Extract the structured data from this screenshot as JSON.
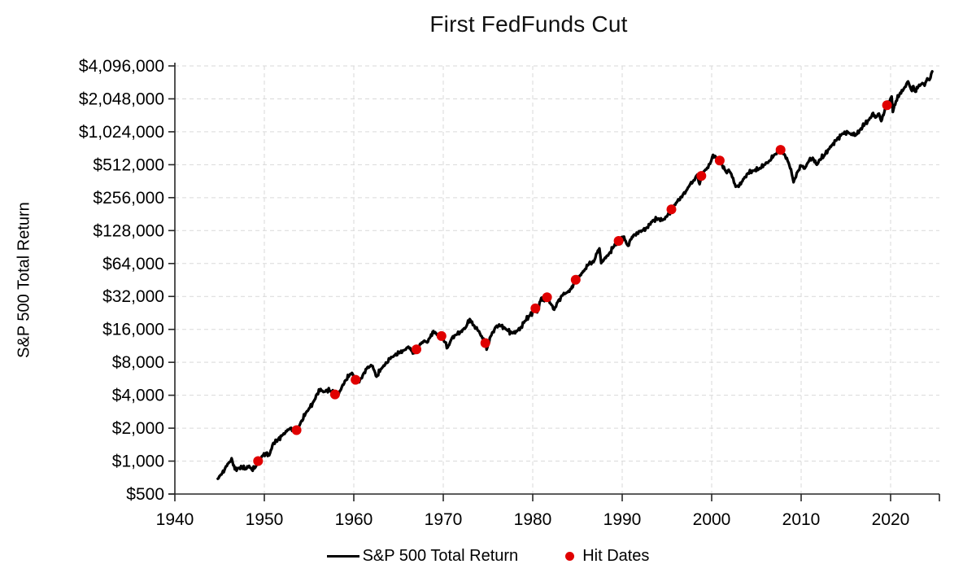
{
  "chart_data": {
    "type": "line",
    "title": "First FedFunds Cut",
    "xlabel": "",
    "ylabel": "S&P 500 Total Return",
    "y_scale": "log2",
    "grid": "dashed",
    "legend_position": "bottom",
    "x_ticks": [
      1940,
      1950,
      1960,
      1970,
      1980,
      1990,
      2000,
      2010,
      2020
    ],
    "x_range": [
      1940,
      2025.5
    ],
    "y_ticks": [
      {
        "label": "$4,096,000",
        "value": 4096000
      },
      {
        "label": "$2,048,000",
        "value": 2048000
      },
      {
        "label": "$1,024,000",
        "value": 1024000
      },
      {
        "label": "$512,000",
        "value": 512000
      },
      {
        "label": "$256,000",
        "value": 256000
      },
      {
        "label": "$128,000",
        "value": 128000
      },
      {
        "label": "$64,000",
        "value": 64000
      },
      {
        "label": "$32,000",
        "value": 32000
      },
      {
        "label": "$16,000",
        "value": 16000
      },
      {
        "label": "$8,000",
        "value": 8000
      },
      {
        "label": "$4,000",
        "value": 4000
      },
      {
        "label": "$2,000",
        "value": 2000
      },
      {
        "label": "$1,000",
        "value": 1000
      },
      {
        "label": "$500",
        "value": 500
      }
    ],
    "colors": {
      "line": "#000000",
      "hit": "#e00000",
      "grid": "#d9d9d9",
      "axis": "#262626",
      "text": "#000000"
    },
    "series": [
      {
        "name": "S&P 500 Total Return",
        "type": "line",
        "points": [
          [
            1944.8,
            690
          ],
          [
            1945.3,
            780
          ],
          [
            1945.8,
            900
          ],
          [
            1946.1,
            980
          ],
          [
            1946.35,
            1060
          ],
          [
            1946.7,
            840
          ],
          [
            1947.1,
            862
          ],
          [
            1947.5,
            885
          ],
          [
            1947.9,
            845
          ],
          [
            1948.3,
            905
          ],
          [
            1948.6,
            835
          ],
          [
            1949.0,
            875
          ],
          [
            1949.3,
            1000
          ],
          [
            1949.8,
            1120
          ],
          [
            1950.3,
            1195
          ],
          [
            1950.55,
            1130
          ],
          [
            1951.0,
            1460
          ],
          [
            1951.5,
            1560
          ],
          [
            1952.0,
            1725
          ],
          [
            1952.5,
            1870
          ],
          [
            1952.9,
            2000
          ],
          [
            1953.3,
            1885
          ],
          [
            1953.6,
            1920
          ],
          [
            1954.0,
            2180
          ],
          [
            1954.6,
            2720
          ],
          [
            1955.1,
            3090
          ],
          [
            1955.5,
            3500
          ],
          [
            1955.9,
            4120
          ],
          [
            1956.3,
            4560
          ],
          [
            1956.6,
            4280
          ],
          [
            1957.0,
            4470
          ],
          [
            1957.4,
            4360
          ],
          [
            1957.9,
            4070
          ],
          [
            1958.05,
            3860
          ],
          [
            1958.5,
            4420
          ],
          [
            1959.0,
            5400
          ],
          [
            1959.5,
            6050
          ],
          [
            1959.8,
            6400
          ],
          [
            1960.2,
            5540
          ],
          [
            1960.6,
            5260
          ],
          [
            1961.0,
            6100
          ],
          [
            1961.5,
            7150
          ],
          [
            1962.0,
            7440
          ],
          [
            1962.3,
            6700
          ],
          [
            1962.55,
            5920
          ],
          [
            1963.0,
            6900
          ],
          [
            1963.5,
            7620
          ],
          [
            1964.0,
            8600
          ],
          [
            1964.6,
            9300
          ],
          [
            1965.2,
            9900
          ],
          [
            1965.7,
            10400
          ],
          [
            1966.1,
            11100
          ],
          [
            1966.5,
            10200
          ],
          [
            1966.8,
            9720
          ],
          [
            1967.0,
            10500
          ],
          [
            1967.5,
            11800
          ],
          [
            1967.9,
            12600
          ],
          [
            1968.2,
            12150
          ],
          [
            1968.9,
            15400
          ],
          [
            1969.3,
            14250
          ],
          [
            1969.8,
            13900
          ],
          [
            1970.2,
            12200
          ],
          [
            1970.5,
            10950
          ],
          [
            1971.0,
            13500
          ],
          [
            1971.5,
            14300
          ],
          [
            1972.0,
            15400
          ],
          [
            1972.5,
            16600
          ],
          [
            1972.95,
            19900
          ],
          [
            1973.4,
            17500
          ],
          [
            1973.9,
            15500
          ],
          [
            1974.3,
            13800
          ],
          [
            1974.7,
            12000
          ],
          [
            1974.85,
            10450
          ],
          [
            1975.3,
            13800
          ],
          [
            1975.9,
            17000
          ],
          [
            1976.5,
            17400
          ],
          [
            1977.0,
            16000
          ],
          [
            1977.7,
            14800
          ],
          [
            1978.2,
            15300
          ],
          [
            1978.7,
            16800
          ],
          [
            1979.1,
            19000
          ],
          [
            1979.7,
            21500
          ],
          [
            1980.1,
            23800
          ],
          [
            1980.3,
            24900
          ],
          [
            1980.5,
            22900
          ],
          [
            1980.95,
            31000
          ],
          [
            1981.3,
            29000
          ],
          [
            1981.6,
            31500
          ],
          [
            1982.0,
            27500
          ],
          [
            1982.4,
            24200
          ],
          [
            1982.8,
            28500
          ],
          [
            1983.4,
            33400
          ],
          [
            1983.9,
            35000
          ],
          [
            1984.3,
            37500
          ],
          [
            1984.8,
            45500
          ],
          [
            1985.3,
            50000
          ],
          [
            1985.8,
            56000
          ],
          [
            1986.3,
            64000
          ],
          [
            1986.8,
            66000
          ],
          [
            1987.2,
            80000
          ],
          [
            1987.45,
            88000
          ],
          [
            1987.65,
            64500
          ],
          [
            1988.0,
            70500
          ],
          [
            1988.5,
            78000
          ],
          [
            1989.0,
            90000
          ],
          [
            1989.6,
            103000
          ],
          [
            1990.0,
            112000
          ],
          [
            1990.3,
            105000
          ],
          [
            1990.65,
            93000
          ],
          [
            1991.1,
            112000
          ],
          [
            1991.7,
            122000
          ],
          [
            1992.2,
            128000
          ],
          [
            1992.8,
            136000
          ],
          [
            1993.4,
            158000
          ],
          [
            1994.0,
            165000
          ],
          [
            1994.5,
            159000
          ],
          [
            1995.0,
            172000
          ],
          [
            1995.5,
            200000
          ],
          [
            1996.1,
            232000
          ],
          [
            1996.6,
            261000
          ],
          [
            1997.1,
            290000
          ],
          [
            1997.6,
            340000
          ],
          [
            1998.0,
            370000
          ],
          [
            1998.4,
            415000
          ],
          [
            1998.65,
            340000
          ],
          [
            1998.85,
            405000
          ],
          [
            1999.2,
            450000
          ],
          [
            1999.6,
            480000
          ],
          [
            1999.9,
            540000
          ],
          [
            2000.15,
            630000
          ],
          [
            2000.5,
            590000
          ],
          [
            2000.9,
            560000
          ],
          [
            2001.2,
            500000
          ],
          [
            2001.7,
            430000
          ],
          [
            2001.9,
            460000
          ],
          [
            2002.2,
            420000
          ],
          [
            2002.6,
            340000
          ],
          [
            2002.85,
            325000
          ],
          [
            2003.1,
            332000
          ],
          [
            2003.6,
            382000
          ],
          [
            2004.1,
            430000
          ],
          [
            2004.7,
            452000
          ],
          [
            2005.3,
            470000
          ],
          [
            2005.9,
            512000
          ],
          [
            2006.4,
            552000
          ],
          [
            2006.9,
            612000
          ],
          [
            2007.4,
            672000
          ],
          [
            2007.7,
            700000
          ],
          [
            2008.0,
            642000
          ],
          [
            2008.4,
            590000
          ],
          [
            2008.7,
            500000
          ],
          [
            2008.95,
            422000
          ],
          [
            2009.15,
            354000
          ],
          [
            2009.6,
            442000
          ],
          [
            2010.0,
            502000
          ],
          [
            2010.4,
            472000
          ],
          [
            2010.9,
            562000
          ],
          [
            2011.3,
            592000
          ],
          [
            2011.75,
            512000
          ],
          [
            2012.1,
            572000
          ],
          [
            2012.6,
            622000
          ],
          [
            2013.0,
            702000
          ],
          [
            2013.5,
            782000
          ],
          [
            2014.0,
            872000
          ],
          [
            2014.6,
            982000
          ],
          [
            2015.2,
            1022000
          ],
          [
            2015.6,
            962000
          ],
          [
            2015.9,
            1002000
          ],
          [
            2016.1,
            952000
          ],
          [
            2016.6,
            1072000
          ],
          [
            2017.1,
            1202000
          ],
          [
            2017.6,
            1322000
          ],
          [
            2018.05,
            1522000
          ],
          [
            2018.3,
            1382000
          ],
          [
            2018.7,
            1502000
          ],
          [
            2018.95,
            1282000
          ],
          [
            2019.3,
            1552000
          ],
          [
            2019.6,
            1790000
          ],
          [
            2019.9,
            1952000
          ],
          [
            2020.12,
            2152000
          ],
          [
            2020.25,
            1552000
          ],
          [
            2020.6,
            1952000
          ],
          [
            2021.0,
            2252000
          ],
          [
            2021.5,
            2552000
          ],
          [
            2021.95,
            2952000
          ],
          [
            2022.3,
            2480000
          ],
          [
            2022.55,
            2680000
          ],
          [
            2022.75,
            2380000
          ],
          [
            2023.1,
            2652000
          ],
          [
            2023.55,
            2852000
          ],
          [
            2023.8,
            2702000
          ],
          [
            2024.1,
            3152000
          ],
          [
            2024.35,
            3052000
          ],
          [
            2024.65,
            3650000
          ]
        ]
      },
      {
        "name": "Hit Dates",
        "type": "scatter",
        "points": [
          [
            1949.3,
            1000
          ],
          [
            1953.6,
            1920
          ],
          [
            1957.9,
            4070
          ],
          [
            1960.2,
            5540
          ],
          [
            1967.0,
            10500
          ],
          [
            1969.8,
            13900
          ],
          [
            1974.7,
            12000
          ],
          [
            1980.3,
            24900
          ],
          [
            1981.6,
            31500
          ],
          [
            1984.8,
            45500
          ],
          [
            1989.6,
            103000
          ],
          [
            1995.5,
            200000
          ],
          [
            1998.85,
            405000
          ],
          [
            2000.9,
            560000
          ],
          [
            2007.7,
            700000
          ],
          [
            2019.6,
            1790000
          ]
        ]
      }
    ]
  }
}
